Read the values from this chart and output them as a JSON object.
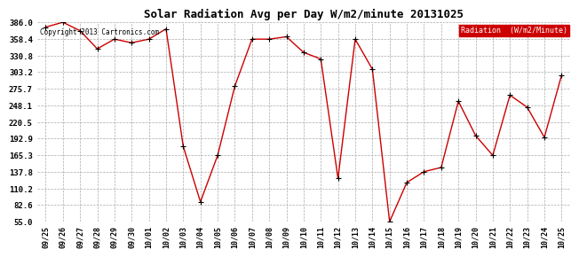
{
  "title": "Solar Radiation Avg per Day W/m2/minute 20131025",
  "copyright_text": "Copyright 2013 Cartronics.com",
  "legend_label": "Radiation  (W/m2/Minute)",
  "dates": [
    "09/25",
    "09/26",
    "09/27",
    "09/28",
    "09/29",
    "09/30",
    "10/01",
    "10/02",
    "10/03",
    "10/04",
    "10/05",
    "10/06",
    "10/07",
    "10/08",
    "10/09",
    "10/10",
    "10/11",
    "10/12",
    "10/13",
    "10/14",
    "10/15",
    "10/16",
    "10/17",
    "10/18",
    "10/19",
    "10/20",
    "10/21",
    "10/22",
    "10/23",
    "10/24",
    "10/25"
  ],
  "values": [
    378.0,
    386.0,
    372.0,
    342.0,
    358.0,
    352.0,
    358.0,
    375.0,
    180.0,
    88.0,
    165.0,
    280.0,
    358.0,
    358.0,
    362.0,
    336.0,
    325.0,
    127.0,
    358.0,
    308.0,
    55.0,
    120.0,
    138.0,
    145.0,
    255.0,
    198.0,
    165.0,
    265.0,
    245.0,
    195.0,
    298.0
  ],
  "ylim": [
    55.0,
    386.0
  ],
  "yticks": [
    55.0,
    82.6,
    110.2,
    137.8,
    165.3,
    192.9,
    220.5,
    248.1,
    275.7,
    303.2,
    330.8,
    358.4,
    386.0
  ],
  "line_color": "#cc0000",
  "marker_color": "#000000",
  "bg_color": "#ffffff",
  "grid_color": "#aaaaaa",
  "title_fontsize": 9,
  "legend_bg": "#cc0000",
  "legend_text_color": "#ffffff"
}
